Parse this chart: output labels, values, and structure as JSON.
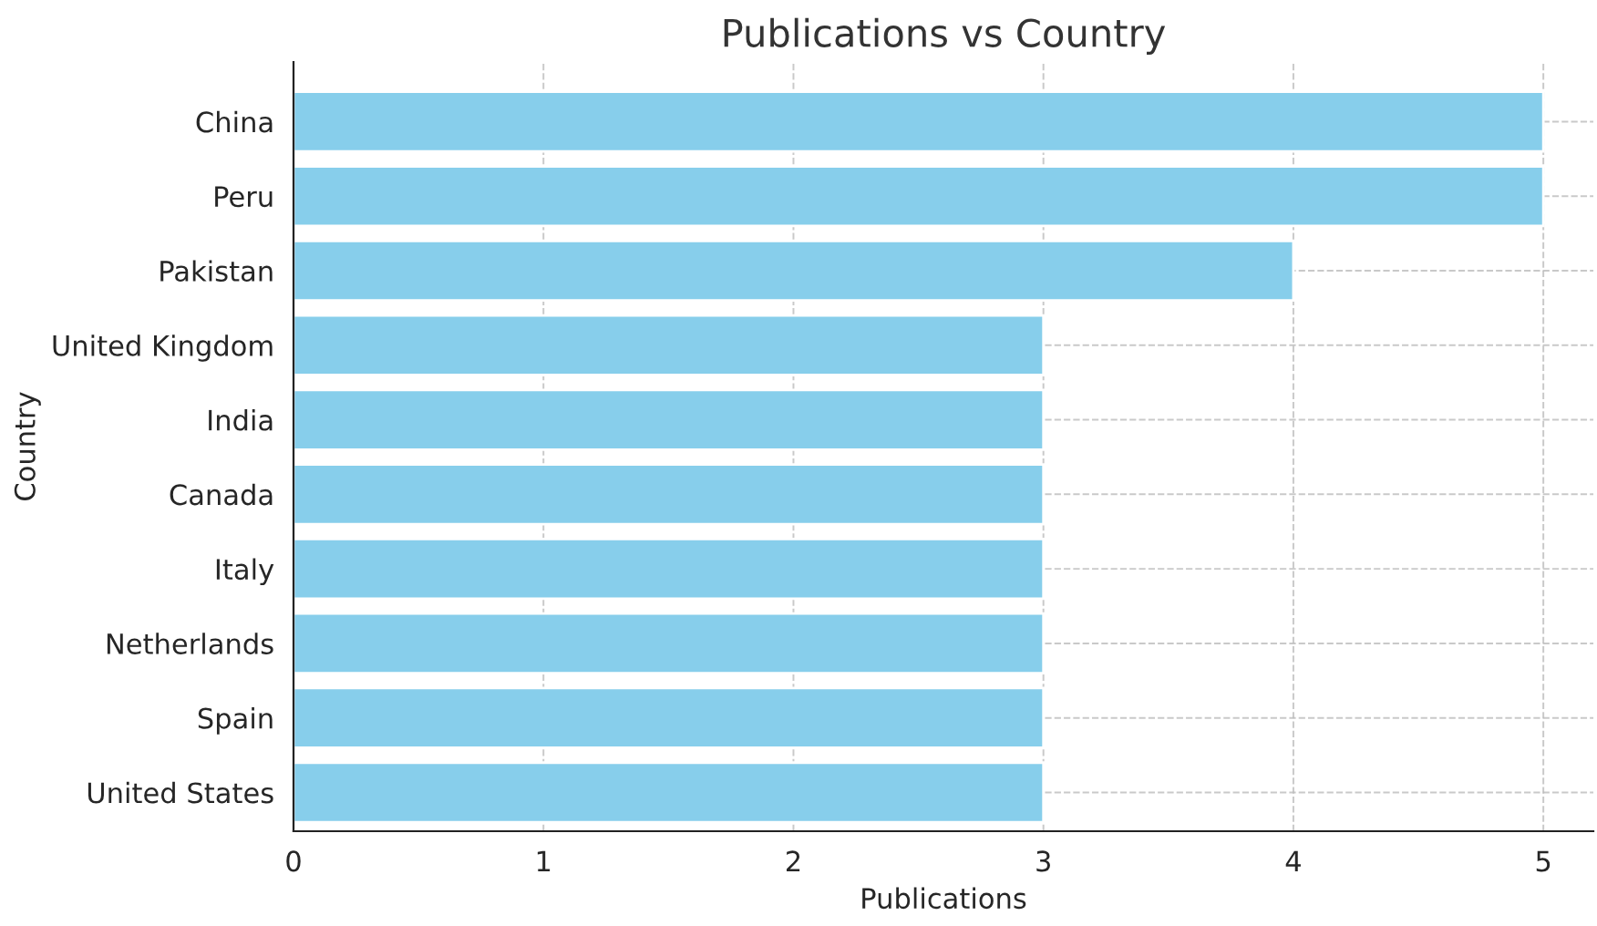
{
  "chart_data": {
    "type": "bar",
    "orientation": "horizontal",
    "title": "Publications vs Country",
    "xlabel": "Publications",
    "ylabel": "Country",
    "categories": [
      "China",
      "Peru",
      "Pakistan",
      "United Kingdom",
      "India",
      "Canada",
      "Italy",
      "Netherlands",
      "Spain",
      "United States"
    ],
    "values": [
      5,
      5,
      4,
      3,
      3,
      3,
      3,
      3,
      3,
      3
    ],
    "color": "#87ceeb",
    "xlim": [
      0,
      5.2
    ],
    "xticks": [
      0,
      1,
      2,
      3,
      4,
      5
    ],
    "grid": true
  }
}
